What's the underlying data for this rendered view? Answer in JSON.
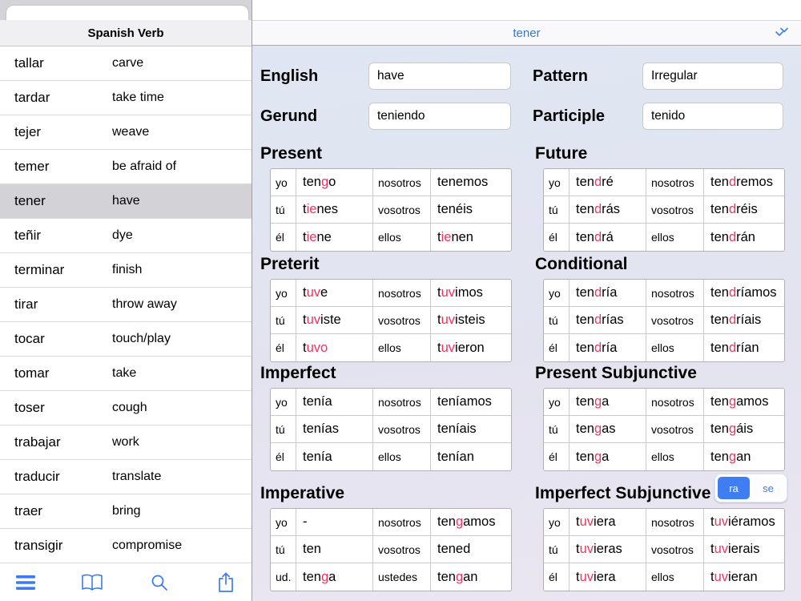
{
  "colors": {
    "accent_blue": "#3a7cf0",
    "irregular_red": "#f5315d",
    "selected_row": "#d2d2d7",
    "nav_title_blue": "#3478d8"
  },
  "sidebar": {
    "title": "Spanish Verb",
    "selected": "tener",
    "verbs": [
      {
        "es": "tallar",
        "en": "carve"
      },
      {
        "es": "tardar",
        "en": "take time"
      },
      {
        "es": "tejer",
        "en": "weave"
      },
      {
        "es": "temer",
        "en": "be afraid of"
      },
      {
        "es": "tener",
        "en": "have"
      },
      {
        "es": "teñir",
        "en": "dye"
      },
      {
        "es": "terminar",
        "en": "finish"
      },
      {
        "es": "tirar",
        "en": "throw away"
      },
      {
        "es": "tocar",
        "en": "touch/play"
      },
      {
        "es": "tomar",
        "en": "take"
      },
      {
        "es": "toser",
        "en": "cough"
      },
      {
        "es": "trabajar",
        "en": "work"
      },
      {
        "es": "traducir",
        "en": "translate"
      },
      {
        "es": "traer",
        "en": "bring"
      },
      {
        "es": "transigir",
        "en": "compromise"
      }
    ],
    "toolbar_icons": [
      "list-icon",
      "book-icon",
      "search-icon",
      "share-icon"
    ]
  },
  "navbar": {
    "title": "tener",
    "action_icon": "double-arrow-icon"
  },
  "fields": [
    {
      "label": "English",
      "value": "have"
    },
    {
      "label": "Pattern",
      "value": "Irregular"
    },
    {
      "label": "Gerund",
      "value": "teniendo"
    },
    {
      "label": "Participle",
      "value": "tenido"
    }
  ],
  "segmented": {
    "options": [
      "ra",
      "se"
    ],
    "selected": "ra"
  },
  "tables": [
    {
      "title": "Present",
      "rows": [
        {
          "p1": "yo",
          "f1": [
            [
              "ten",
              0
            ],
            [
              "g",
              1
            ],
            [
              "o",
              0
            ]
          ],
          "p2": "nosotros",
          "f2": [
            [
              "tenemos",
              0
            ]
          ]
        },
        {
          "p1": "tú",
          "f1": [
            [
              "t",
              0
            ],
            [
              "ie",
              1
            ],
            [
              "nes",
              0
            ]
          ],
          "p2": "vosotros",
          "f2": [
            [
              "tenéis",
              0
            ]
          ]
        },
        {
          "p1": "él",
          "f1": [
            [
              "t",
              0
            ],
            [
              "ie",
              1
            ],
            [
              "ne",
              0
            ]
          ],
          "p2": "ellos",
          "f2": [
            [
              "t",
              0
            ],
            [
              "ie",
              1
            ],
            [
              "nen",
              0
            ]
          ]
        }
      ]
    },
    {
      "title": "Future",
      "rows": [
        {
          "p1": "yo",
          "f1": [
            [
              "ten",
              0
            ],
            [
              "d",
              1
            ],
            [
              "ré",
              0
            ]
          ],
          "p2": "nosotros",
          "f2": [
            [
              "ten",
              0
            ],
            [
              "d",
              1
            ],
            [
              "remos",
              0
            ]
          ]
        },
        {
          "p1": "tú",
          "f1": [
            [
              "ten",
              0
            ],
            [
              "d",
              1
            ],
            [
              "rás",
              0
            ]
          ],
          "p2": "vosotros",
          "f2": [
            [
              "ten",
              0
            ],
            [
              "d",
              1
            ],
            [
              "réis",
              0
            ]
          ]
        },
        {
          "p1": "él",
          "f1": [
            [
              "ten",
              0
            ],
            [
              "d",
              1
            ],
            [
              "rá",
              0
            ]
          ],
          "p2": "ellos",
          "f2": [
            [
              "ten",
              0
            ],
            [
              "d",
              1
            ],
            [
              "rán",
              0
            ]
          ]
        }
      ]
    },
    {
      "title": "Preterit",
      "rows": [
        {
          "p1": "yo",
          "f1": [
            [
              "t",
              0
            ],
            [
              "uv",
              1
            ],
            [
              "e",
              0
            ]
          ],
          "p2": "nosotros",
          "f2": [
            [
              "t",
              0
            ],
            [
              "uv",
              1
            ],
            [
              "imos",
              0
            ]
          ]
        },
        {
          "p1": "tú",
          "f1": [
            [
              "t",
              0
            ],
            [
              "uv",
              1
            ],
            [
              "iste",
              0
            ]
          ],
          "p2": "vosotros",
          "f2": [
            [
              "t",
              0
            ],
            [
              "uv",
              1
            ],
            [
              "isteis",
              0
            ]
          ]
        },
        {
          "p1": "él",
          "f1": [
            [
              "t",
              0
            ],
            [
              "uvo",
              1
            ]
          ],
          "p2": "ellos",
          "f2": [
            [
              "t",
              0
            ],
            [
              "uv",
              1
            ],
            [
              "ieron",
              0
            ]
          ]
        }
      ]
    },
    {
      "title": "Conditional",
      "rows": [
        {
          "p1": "yo",
          "f1": [
            [
              "ten",
              0
            ],
            [
              "d",
              1
            ],
            [
              "ría",
              0
            ]
          ],
          "p2": "nosotros",
          "f2": [
            [
              "ten",
              0
            ],
            [
              "d",
              1
            ],
            [
              "ríamos",
              0
            ]
          ]
        },
        {
          "p1": "tú",
          "f1": [
            [
              "ten",
              0
            ],
            [
              "d",
              1
            ],
            [
              "rías",
              0
            ]
          ],
          "p2": "vosotros",
          "f2": [
            [
              "ten",
              0
            ],
            [
              "d",
              1
            ],
            [
              "ríais",
              0
            ]
          ]
        },
        {
          "p1": "él",
          "f1": [
            [
              "ten",
              0
            ],
            [
              "d",
              1
            ],
            [
              "ría",
              0
            ]
          ],
          "p2": "ellos",
          "f2": [
            [
              "ten",
              0
            ],
            [
              "d",
              1
            ],
            [
              "rían",
              0
            ]
          ]
        }
      ]
    },
    {
      "title": "Imperfect",
      "rows": [
        {
          "p1": "yo",
          "f1": [
            [
              "tenía",
              0
            ]
          ],
          "p2": "nosotros",
          "f2": [
            [
              "teníamos",
              0
            ]
          ]
        },
        {
          "p1": "tú",
          "f1": [
            [
              "tenías",
              0
            ]
          ],
          "p2": "vosotros",
          "f2": [
            [
              "teníais",
              0
            ]
          ]
        },
        {
          "p1": "él",
          "f1": [
            [
              "tenía",
              0
            ]
          ],
          "p2": "ellos",
          "f2": [
            [
              "tenían",
              0
            ]
          ]
        }
      ]
    },
    {
      "title": "Present Subjunctive",
      "rows": [
        {
          "p1": "yo",
          "f1": [
            [
              "ten",
              0
            ],
            [
              "g",
              1
            ],
            [
              "a",
              0
            ]
          ],
          "p2": "nosotros",
          "f2": [
            [
              "ten",
              0
            ],
            [
              "g",
              1
            ],
            [
              "amos",
              0
            ]
          ]
        },
        {
          "p1": "tú",
          "f1": [
            [
              "ten",
              0
            ],
            [
              "g",
              1
            ],
            [
              "as",
              0
            ]
          ],
          "p2": "vosotros",
          "f2": [
            [
              "ten",
              0
            ],
            [
              "g",
              1
            ],
            [
              "áis",
              0
            ]
          ]
        },
        {
          "p1": "él",
          "f1": [
            [
              "ten",
              0
            ],
            [
              "g",
              1
            ],
            [
              "a",
              0
            ]
          ],
          "p2": "ellos",
          "f2": [
            [
              "ten",
              0
            ],
            [
              "g",
              1
            ],
            [
              "an",
              0
            ]
          ]
        }
      ]
    },
    {
      "title": "Imperative",
      "rows": [
        {
          "p1": "yo",
          "f1": [
            [
              "-",
              0
            ]
          ],
          "p2": "nosotros",
          "f2": [
            [
              "ten",
              0
            ],
            [
              "g",
              1
            ],
            [
              "amos",
              0
            ]
          ]
        },
        {
          "p1": "tú",
          "f1": [
            [
              "ten",
              0
            ]
          ],
          "p2": "vosotros",
          "f2": [
            [
              "tened",
              0
            ]
          ]
        },
        {
          "p1": "ud.",
          "f1": [
            [
              "ten",
              0
            ],
            [
              "g",
              1
            ],
            [
              "a",
              0
            ]
          ],
          "p2": "ustedes",
          "f2": [
            [
              "ten",
              0
            ],
            [
              "g",
              1
            ],
            [
              "an",
              0
            ]
          ]
        }
      ]
    },
    {
      "title": "Imperfect Subjunctive",
      "rows": [
        {
          "p1": "yo",
          "f1": [
            [
              "t",
              0
            ],
            [
              "uv",
              1
            ],
            [
              "iera",
              0
            ]
          ],
          "p2": "nosotros",
          "f2": [
            [
              "t",
              0
            ],
            [
              "uv",
              1
            ],
            [
              "iéramos",
              0
            ]
          ]
        },
        {
          "p1": "tú",
          "f1": [
            [
              "t",
              0
            ],
            [
              "uv",
              1
            ],
            [
              "ieras",
              0
            ]
          ],
          "p2": "vosotros",
          "f2": [
            [
              "t",
              0
            ],
            [
              "uv",
              1
            ],
            [
              "ierais",
              0
            ]
          ]
        },
        {
          "p1": "él",
          "f1": [
            [
              "t",
              0
            ],
            [
              "uv",
              1
            ],
            [
              "iera",
              0
            ]
          ],
          "p2": "ellos",
          "f2": [
            [
              "t",
              0
            ],
            [
              "uv",
              1
            ],
            [
              "ieran",
              0
            ]
          ]
        }
      ]
    }
  ]
}
